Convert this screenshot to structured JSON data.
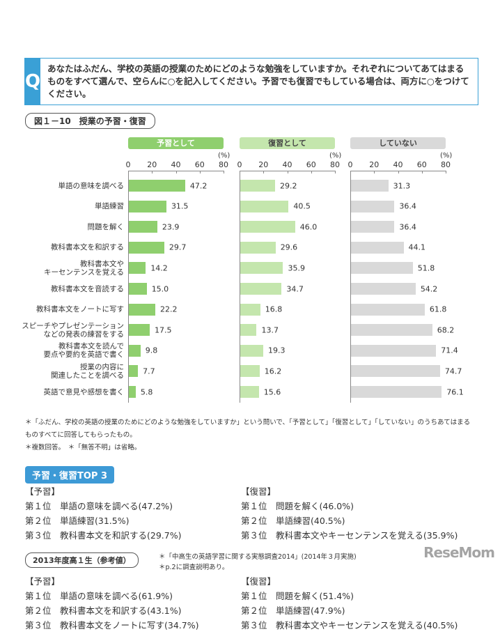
{
  "question": {
    "mark": "Q",
    "text": "あなたはふだん、学校の英語の授業のためにどのような勉強をしていますか。それぞれについてあてはまるものをすべて選んで、空らんに○を記入してください。予習でも復習でもしている場合は、両方に○をつけてください。"
  },
  "figure_title": "図１－10　授業の予習・復習",
  "chart_data": {
    "type": "bar",
    "orientation": "horizontal",
    "unit": "(%)",
    "xlim": [
      0,
      80
    ],
    "ticks": [
      "0",
      "20",
      "40",
      "60",
      "80"
    ],
    "categories": [
      "単語の意味を調べる",
      "単語練習",
      "問題を解く",
      "教科書本文を和訳する",
      "教科書本文や\nキーセンテンスを覚える",
      "教科書本文を音読する",
      "教科書本文をノートに写す",
      "スピーチやプレゼンテーション\nなどの発表の練習をする",
      "教科書本文を読んで\n要点や要約を英語で書く",
      "授業の内容に\n関連したことを調べる",
      "英語で意見や感想を書く"
    ],
    "series": [
      {
        "name": "予習として",
        "color": "#8fcf6e",
        "values": [
          47.2,
          31.5,
          23.9,
          29.7,
          14.2,
          15.0,
          22.2,
          17.5,
          9.8,
          7.7,
          5.8
        ]
      },
      {
        "name": "復習として",
        "color": "#c4e6ad",
        "values": [
          29.2,
          40.5,
          46.0,
          29.6,
          35.9,
          34.7,
          16.8,
          13.7,
          19.3,
          16.2,
          15.6
        ]
      },
      {
        "name": "していない",
        "color": "#d9d9d9",
        "values": [
          31.3,
          36.4,
          36.4,
          44.1,
          51.8,
          54.2,
          61.8,
          68.2,
          71.4,
          74.7,
          76.1
        ]
      }
    ]
  },
  "notes": [
    "＊「ふだん、学校の英語の授業のためにどのような勉強をしていますか」という問いで、「予習として」「復習として」「していない」のうちあてはまるものすべてに回答してもらったもの。",
    "＊複数回答。　＊「無答不明」は省略。"
  ],
  "top3": {
    "title": "予習・復習TOP 3",
    "yoshu": {
      "head": "【予習】",
      "items": [
        "第１位　単語の意味を調べる(47.2%)",
        "第２位　単語練習(31.5%)",
        "第３位　教科書本文を和訳する(29.7%)"
      ]
    },
    "fukushu": {
      "head": "【復習】",
      "items": [
        "第１位　問題を解く(46.0%)",
        "第２位　単語練習(40.5%)",
        "第３位　教科書本文やキーセンテンスを覚える(35.9%)"
      ]
    }
  },
  "reference": {
    "title": "2013年度高１生（参考値）",
    "notes": [
      "＊「中高生の英語学習に関する実態調査2014」(2014年３月実施)",
      "＊p.2に調査説明あり。"
    ],
    "yoshu": {
      "head": "【予習】",
      "items": [
        "第１位　単語の意味を調べる(61.9%)",
        "第２位　教科書本文を和訳する(43.1%)",
        "第３位　教科書本文をノートに写す(34.7%)"
      ]
    },
    "fukushu": {
      "head": "【復習】",
      "items": [
        "第１位　問題を解く(51.4%)",
        "第２位　単語練習(47.9%)",
        "第３位　教科書本文やキーセンテンスを覚える(40.5%)"
      ]
    }
  },
  "watermark": "ReseMom"
}
